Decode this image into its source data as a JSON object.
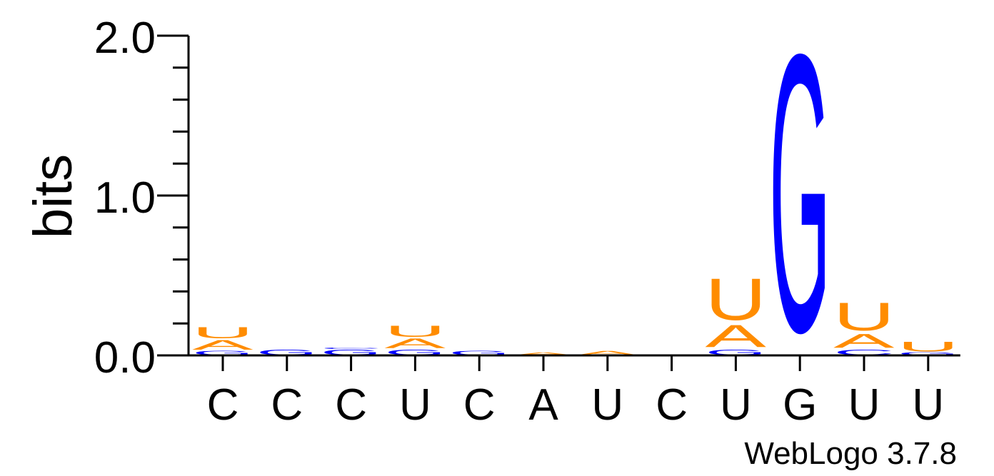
{
  "chart_data": {
    "type": "sequence_logo",
    "ylabel": "bits",
    "ylim": [
      0,
      2.0
    ],
    "y_ticks": [
      {
        "value": 0.0,
        "label": "0.0"
      },
      {
        "value": 1.0,
        "label": "1.0"
      },
      {
        "value": 2.0,
        "label": "2.0"
      }
    ],
    "y_minor_step": 0.2,
    "positions": [
      {
        "label": "C",
        "stack": [
          {
            "letter": "G",
            "height": 0.03
          },
          {
            "letter": "A",
            "height": 0.07
          },
          {
            "letter": "U",
            "height": 0.08
          }
        ]
      },
      {
        "label": "C",
        "stack": [
          {
            "letter": "G",
            "height": 0.04
          }
        ]
      },
      {
        "label": "C",
        "stack": [
          {
            "letter": "G",
            "height": 0.04
          },
          {
            "letter": "C",
            "height": 0.01
          }
        ]
      },
      {
        "label": "U",
        "stack": [
          {
            "letter": "G",
            "height": 0.04
          },
          {
            "letter": "A",
            "height": 0.07
          },
          {
            "letter": "U",
            "height": 0.08
          }
        ]
      },
      {
        "label": "C",
        "stack": [
          {
            "letter": "G",
            "height": 0.03
          }
        ]
      },
      {
        "label": "A",
        "stack": [
          {
            "letter": "A",
            "height": 0.02
          }
        ]
      },
      {
        "label": "U",
        "stack": [
          {
            "letter": "A",
            "height": 0.03
          }
        ]
      },
      {
        "label": "C",
        "stack": []
      },
      {
        "label": "U",
        "stack": [
          {
            "letter": "G",
            "height": 0.04
          },
          {
            "letter": "A",
            "height": 0.16
          },
          {
            "letter": "U",
            "height": 0.3
          }
        ]
      },
      {
        "label": "G",
        "stack": [
          {
            "letter": "G",
            "height": 2.0
          }
        ]
      },
      {
        "label": "U",
        "stack": [
          {
            "letter": "C",
            "height": 0.04
          },
          {
            "letter": "A",
            "height": 0.1
          },
          {
            "letter": "U",
            "height": 0.2
          }
        ]
      },
      {
        "label": "U",
        "stack": [
          {
            "letter": "G",
            "height": 0.02
          },
          {
            "letter": "U",
            "height": 0.07
          }
        ]
      }
    ],
    "colors": {
      "A": "#ff8c00",
      "U": "#ff8c00",
      "G": "#0000ff",
      "C": "#0000ff"
    },
    "credit": "WebLogo 3.7.8"
  }
}
